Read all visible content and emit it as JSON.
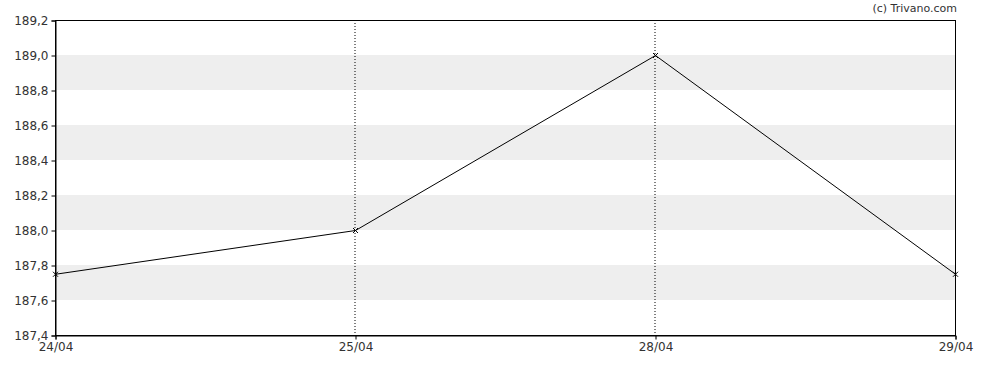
{
  "chart_data": {
    "type": "line",
    "annotations": [
      "(c) Trivano.com"
    ],
    "categories": [
      "24/04",
      "25/04",
      "28/04",
      "29/04"
    ],
    "values": [
      187.75,
      188.0,
      189.0,
      187.75
    ],
    "color": "#000000",
    "marker": "x",
    "ylim": [
      187.4,
      189.2
    ],
    "yticks": [
      {
        "value": 187.4,
        "label": "187,4"
      },
      {
        "value": 187.6,
        "label": "187,6"
      },
      {
        "value": 187.8,
        "label": "187,8"
      },
      {
        "value": 188.0,
        "label": "188,0"
      },
      {
        "value": 188.2,
        "label": "188,2"
      },
      {
        "value": 188.4,
        "label": "188,4"
      },
      {
        "value": 188.6,
        "label": "188,6"
      },
      {
        "value": 188.8,
        "label": "188,8"
      },
      {
        "value": 189.0,
        "label": "189,0"
      },
      {
        "value": 189.2,
        "label": "189,2"
      }
    ],
    "grid": true
  }
}
